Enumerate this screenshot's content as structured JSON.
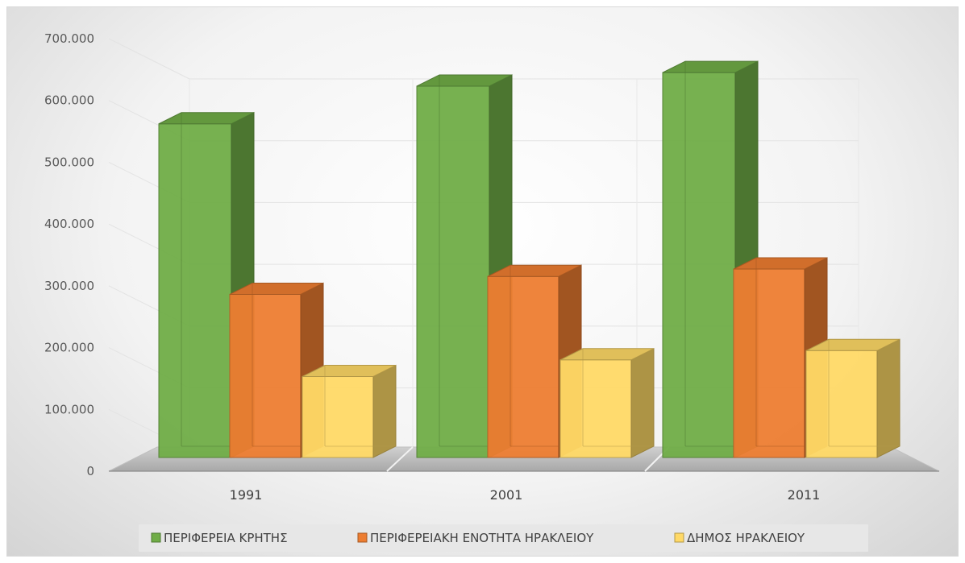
{
  "chart_data": {
    "type": "bar",
    "style": "3d-clustered-column",
    "categories": [
      "1991",
      "2001",
      "2011"
    ],
    "series": [
      {
        "name": "ΠΕΡΙΦΕΡΕΙΑ ΚΡΗΤΗΣ",
        "values": [
          540000,
          601000,
          623000
        ],
        "color": "#70AD47"
      },
      {
        "name": "ΠΕΡΙΦΕΡΕΙΑΚΗ ΕΝΟΤΗΤΑ ΗΡΑΚΛΕΙΟΥ",
        "values": [
          264000,
          293000,
          305000
        ],
        "color": "#ED7D31"
      },
      {
        "name": "ΔΗΜΟΣ ΗΡΑΚΛΕΙΟΥ",
        "values": [
          131000,
          158000,
          173000
        ],
        "color": "#FFD966"
      }
    ],
    "ylim": [
      0,
      700000
    ],
    "yticks": [
      0,
      100000,
      200000,
      300000,
      400000,
      500000,
      600000,
      700000
    ],
    "ytick_labels": [
      "0",
      "100.000",
      "200.000",
      "300.000",
      "400.000",
      "500.000",
      "600.000",
      "700.000"
    ],
    "title": "",
    "xlabel": "",
    "ylabel": "",
    "grid": true,
    "legend_position": "bottom"
  }
}
